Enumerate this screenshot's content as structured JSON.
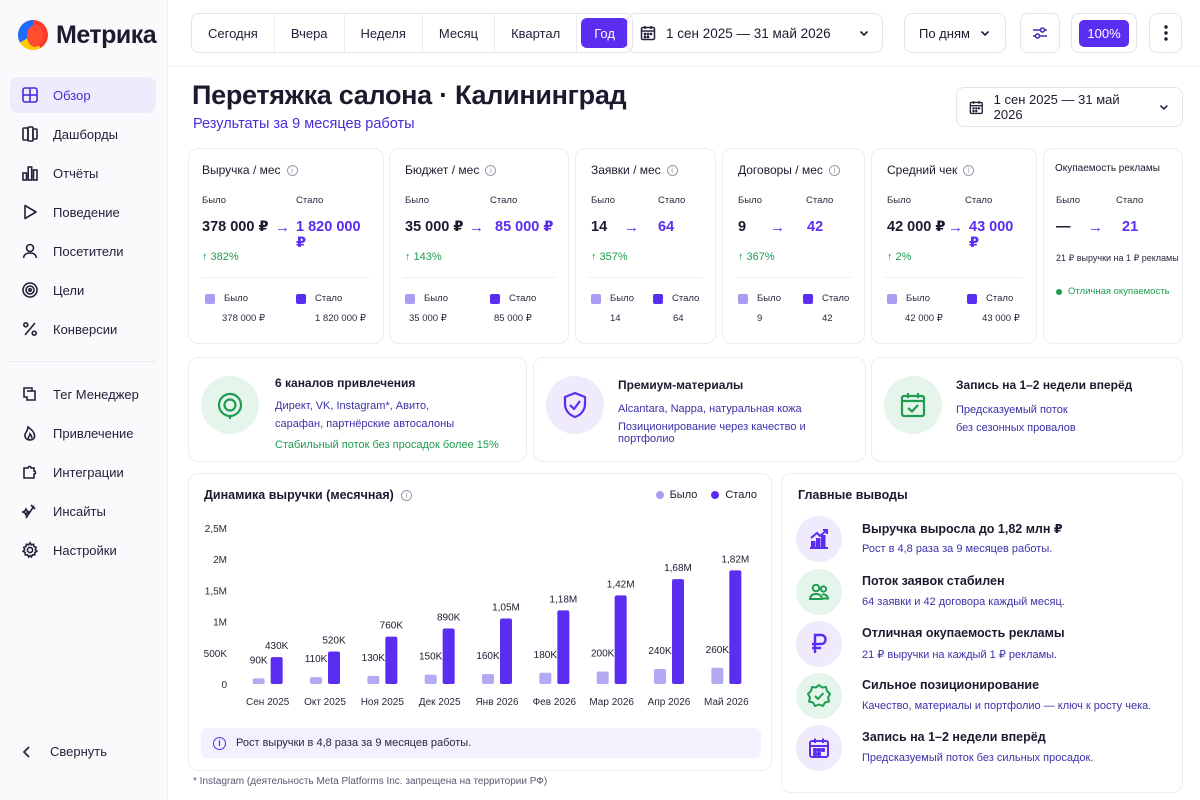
{
  "app": {
    "name": "Метрика"
  },
  "sidebar": {
    "items": [
      {
        "label": "Обзор",
        "icon": "grid-icon",
        "active": true
      },
      {
        "label": "Дашборды",
        "icon": "dashboards-icon"
      },
      {
        "label": "Отчёты",
        "icon": "bar-chart-icon"
      },
      {
        "label": "Поведение",
        "icon": "play-icon"
      },
      {
        "label": "Посетители",
        "icon": "user-icon"
      },
      {
        "label": "Цели",
        "icon": "target-icon"
      },
      {
        "label": "Конверсии",
        "icon": "percent-icon"
      }
    ],
    "items2": [
      {
        "label": "Тег Менеджер",
        "icon": "tag-manager-icon"
      },
      {
        "label": "Привлечение",
        "icon": "flame-icon"
      },
      {
        "label": "Интеграции",
        "icon": "puzzle-icon"
      },
      {
        "label": "Инсайты",
        "icon": "sparkle-icon"
      },
      {
        "label": "Настройки",
        "icon": "gear-icon"
      }
    ],
    "collapse_label": "Свернуть"
  },
  "toolbar": {
    "periods": [
      "Сегодня",
      "Вчера",
      "Неделя",
      "Месяц",
      "Квартал",
      "Год"
    ],
    "active_period": "Год",
    "date_range": "1 сен 2025 — 31 май 2026",
    "grouping": "По дням",
    "zoom": "100%"
  },
  "page": {
    "title": "Перетяжка салона · Калининград",
    "subtitle": "Результаты за 9 месяцев работы",
    "date_range": "1 сен 2025 — 31 май 2026"
  },
  "kpis": [
    {
      "title": "Выручка / мес",
      "was_label": "Было",
      "now_label": "Стало",
      "was": "378 000 ₽",
      "now": "1 820 000 ₽",
      "growth": "↑  382%",
      "leg_was": "378 000 ₽",
      "leg_now": "1 820 000 ₽"
    },
    {
      "title": "Бюджет / мес",
      "was_label": "Было",
      "now_label": "Стало",
      "was": "35 000 ₽",
      "now": "85 000 ₽",
      "growth": "↑  143%",
      "leg_was": "35 000 ₽",
      "leg_now": "85 000 ₽"
    },
    {
      "title": "Заявки / мес",
      "was_label": "Было",
      "now_label": "Стало",
      "was": "14",
      "now": "64",
      "growth": "↑  357%",
      "leg_was": "14",
      "leg_now": "64"
    },
    {
      "title": "Договоры / мес",
      "was_label": "Было",
      "now_label": "Стало",
      "was": "9",
      "now": "42",
      "growth": "↑  367%",
      "leg_was": "9",
      "leg_now": "42"
    },
    {
      "title": "Средний чек",
      "was_label": "Было",
      "now_label": "Стало",
      "was": "42 000 ₽",
      "now": "43 000 ₽",
      "growth": "↑  2%",
      "leg_was": "42 000 ₽",
      "leg_now": "43 000 ₽"
    },
    {
      "title": "Окупаемость рекламы",
      "was_label": "Было",
      "now_label": "Стало",
      "was": "—",
      "now": "21",
      "note": "21 ₽ выручки на 1 ₽ рекламы",
      "ok": "Отличная окупаемость"
    }
  ],
  "legend": {
    "was": "Было",
    "now": "Стало"
  },
  "info_cards": [
    {
      "title": "6 каналов привлечения",
      "lines": [
        "Директ, VK, Instagram*, Авито,",
        "сарафан, партнёрские автосалоны"
      ],
      "highlight": "Стабильный поток без просадок более 15%"
    },
    {
      "title": "Премиум-материалы",
      "lines": [
        "Alcantara, Nappa, натуральная кожа",
        "Позиционирование через качество и портфолио"
      ]
    },
    {
      "title": "Запись на 1–2 недели вперёд",
      "lines": [
        "Предсказуемый поток",
        "без сезонных провалов"
      ]
    }
  ],
  "chart": {
    "title": "Динамика выручки (месячная)",
    "note": "Рост выручки в 4,8 раза за 9 месяцев работы.",
    "colors": {
      "was": "#b4aaf3",
      "now": "#5a2df0"
    }
  },
  "chart_data": {
    "type": "bar",
    "categories": [
      "Сен 2025",
      "Окт 2025",
      "Ноя 2025",
      "Дек 2025",
      "Янв 2026",
      "Фев 2026",
      "Мар 2026",
      "Апр 2026",
      "Май 2026"
    ],
    "series": [
      {
        "name": "Было",
        "values": [
          90000,
          110000,
          130000,
          150000,
          160000,
          180000,
          200000,
          240000,
          260000
        ],
        "labels": [
          "90K",
          "110K",
          "130K",
          "150K",
          "160K",
          "180K",
          "200K",
          "240K",
          "260K"
        ]
      },
      {
        "name": "Стало",
        "values": [
          430000,
          520000,
          760000,
          890000,
          1050000,
          1180000,
          1420000,
          1680000,
          1820000
        ],
        "labels": [
          "430K",
          "520K",
          "760K",
          "890K",
          "1,05M",
          "1,18M",
          "1,42M",
          "1,68M",
          "1,82M"
        ]
      }
    ],
    "yticks": [
      "0",
      "500K",
      "1M",
      "1,5M",
      "2M",
      "2,5M"
    ],
    "ylim": [
      0,
      2500000
    ],
    "legend": "top-right"
  },
  "conclusions": {
    "title": "Главные выводы",
    "items": [
      {
        "title": "Выручка выросла до 1,82 млн ₽",
        "desc": "Рост в 4,8 раза за 9 месяцев работы.",
        "icon": "growth-chart-icon"
      },
      {
        "title": "Поток заявок стабилен",
        "desc": "64 заявки и 42 договора каждый месяц.",
        "icon": "users-icon"
      },
      {
        "title": "Отличная окупаемость рекламы",
        "desc": "21 ₽ выручки на каждый 1 ₽ рекламы.",
        "icon": "ruble-icon"
      },
      {
        "title": "Сильное позиционирование",
        "desc": "Качество, материалы и портфолио — ключ к росту чека.",
        "icon": "badge-check-icon"
      },
      {
        "title": "Запись на 1–2 недели вперёд",
        "desc": "Предсказуемый поток без сильных просадок.",
        "icon": "calendar-icon"
      }
    ]
  },
  "footnote": "* Instagram (деятельность Meta Platforms Inc. запрещена на территории РФ)"
}
